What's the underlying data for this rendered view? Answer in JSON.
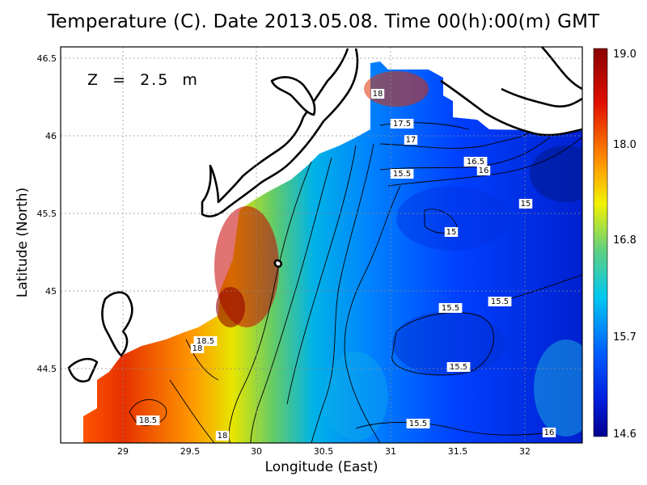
{
  "title": "Temperature (C). Date 2013.05.08. Time 00(h):00(m) GMT",
  "depth_label": "Z  =  2.5  m",
  "x_axis": {
    "label": "Longitude (East)",
    "range": [
      28.57,
      32.43
    ],
    "ticks": [
      "29",
      "29.5",
      "30",
      "30.5",
      "31",
      "31.5",
      "32"
    ]
  },
  "y_axis": {
    "label": "Latitude (North)",
    "range": [
      44.04,
      46.57
    ],
    "ticks": [
      "44.5",
      "45",
      "45.5",
      "46",
      "46.5"
    ]
  },
  "colorbar": {
    "min": 14.6,
    "max": 19.0,
    "labels": [
      "19.0",
      "18.0",
      "16.8",
      "15.7",
      "14.6"
    ]
  },
  "contour_labels": [
    "18",
    "17.5",
    "17",
    "16.5",
    "16",
    "15.5",
    "15",
    "15",
    "15.5",
    "15.5",
    "15.5",
    "15.5",
    "18.5",
    "18",
    "18.5",
    "18",
    "16"
  ],
  "colors": {
    "warm": "#a80000",
    "cold": "#0000a0",
    "grid": "#999999"
  }
}
